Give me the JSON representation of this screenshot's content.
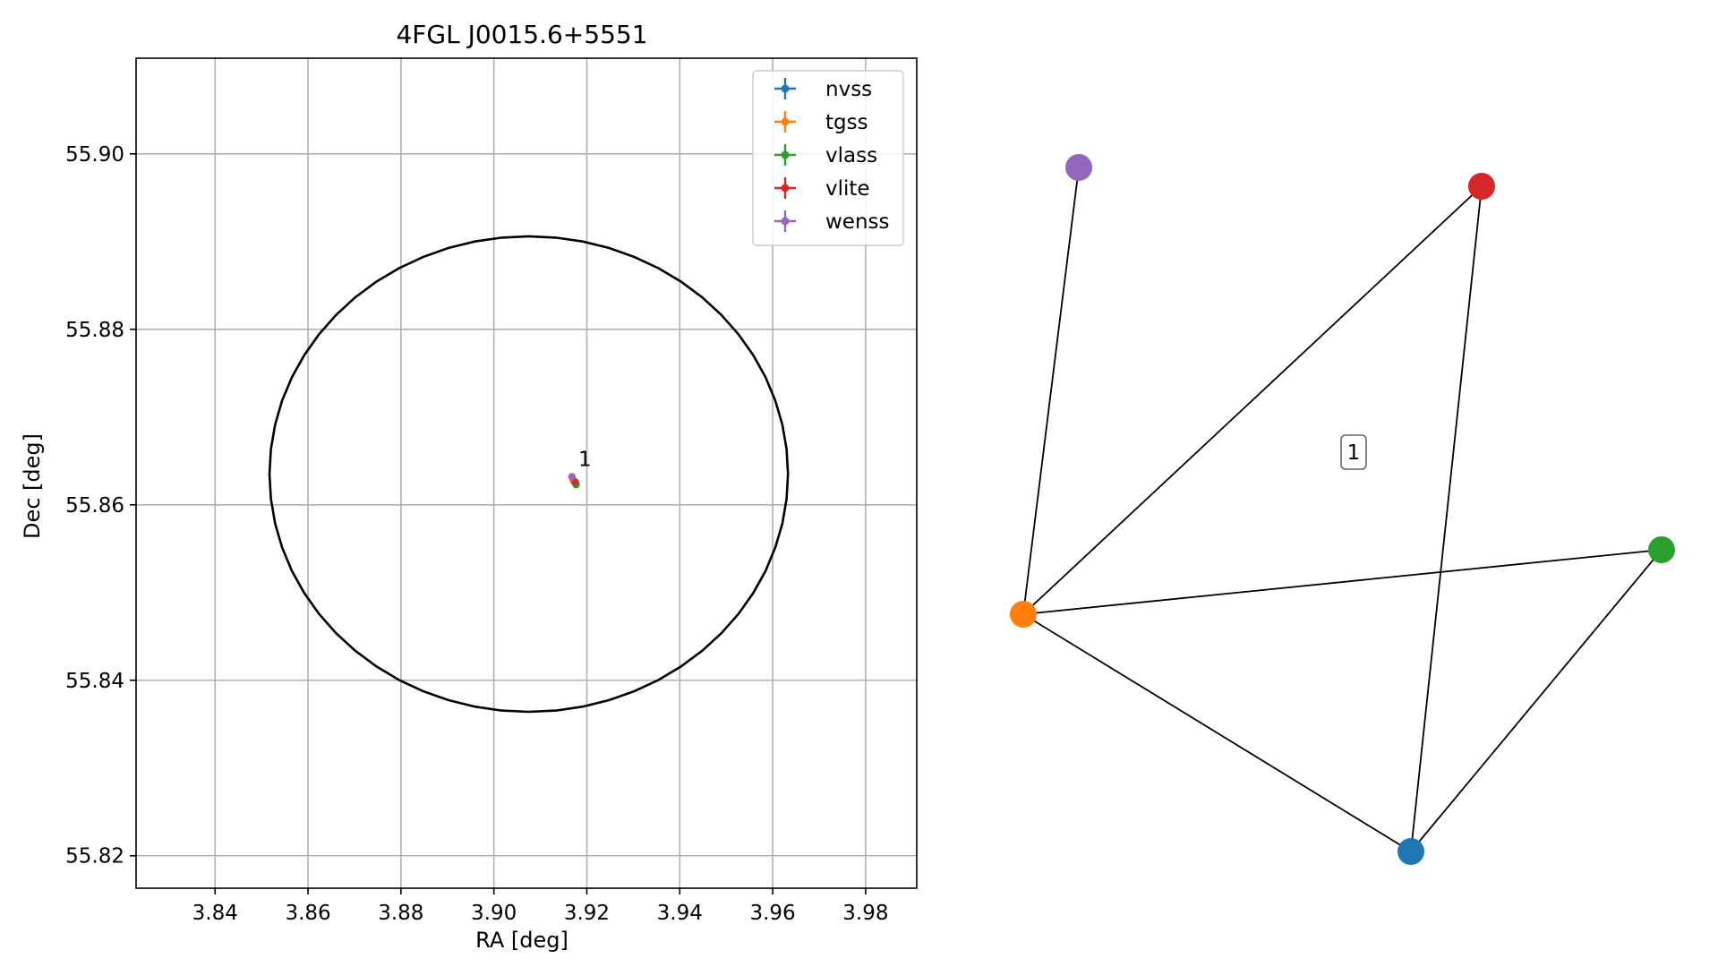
{
  "chart_data": [
    {
      "type": "scatter",
      "title": "4FGL J0015.6+5551",
      "xlabel": "RA [deg]",
      "ylabel": "Dec [deg]",
      "xlim": [
        3.823,
        3.991
      ],
      "ylim": [
        55.8163,
        55.9109
      ],
      "xticks": [
        3.84,
        3.86,
        3.88,
        3.9,
        3.92,
        3.94,
        3.96,
        3.98
      ],
      "yticks": [
        55.82,
        55.84,
        55.86,
        55.88,
        55.9
      ],
      "xtick_labels": [
        "3.84",
        "3.86",
        "3.88",
        "3.90",
        "3.92",
        "3.94",
        "3.96",
        "3.98"
      ],
      "ytick_labels": [
        "55.82",
        "55.84",
        "55.86",
        "55.88",
        "55.90"
      ],
      "grid": true,
      "legend_position": "top-right",
      "ellipse": {
        "center": [
          3.9075,
          55.8635
        ],
        "ra_semi_axis": 0.0558,
        "dec_semi_axis": 0.0271,
        "color": "#000000"
      },
      "series": [
        {
          "name": "nvss",
          "color": "#1f77b4",
          "points": [
            {
              "x": 3.9172,
              "y": 55.8627
            }
          ]
        },
        {
          "name": "tgss",
          "color": "#ff7f0e",
          "points": [
            {
              "x": 3.917,
              "y": 55.8629
            }
          ]
        },
        {
          "name": "vlass",
          "color": "#2ca02c",
          "points": [
            {
              "x": 3.9177,
              "y": 55.8623
            }
          ]
        },
        {
          "name": "vlite",
          "color": "#d62728",
          "points": [
            {
              "x": 3.9175,
              "y": 55.8626
            }
          ]
        },
        {
          "name": "wenss",
          "color": "#9467bd",
          "points": [
            {
              "x": 3.9168,
              "y": 55.8632
            }
          ]
        }
      ],
      "annotations": [
        {
          "text": "1",
          "x": 3.9178,
          "y": 55.8638
        }
      ]
    },
    {
      "type": "network",
      "grid": false,
      "nodes": [
        {
          "id": "wenss",
          "color": "#9467bd"
        },
        {
          "id": "vlite",
          "color": "#d62728"
        },
        {
          "id": "vlass",
          "color": "#2ca02c"
        },
        {
          "id": "tgss",
          "color": "#ff7f0e"
        },
        {
          "id": "nvss",
          "color": "#1f77b4"
        }
      ],
      "edges": [
        [
          "tgss",
          "wenss"
        ],
        [
          "tgss",
          "vlite"
        ],
        [
          "tgss",
          "vlass"
        ],
        [
          "tgss",
          "nvss"
        ],
        [
          "vlite",
          "nvss"
        ],
        [
          "vlass",
          "nvss"
        ]
      ],
      "cluster_label": "1"
    }
  ]
}
